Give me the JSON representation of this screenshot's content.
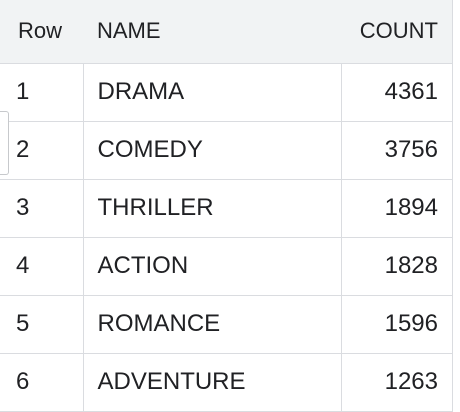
{
  "table": {
    "columns": [
      "Row",
      "NAME",
      "COUNT"
    ],
    "rows": [
      {
        "row": "1",
        "name": "DRAMA",
        "count": "4361"
      },
      {
        "row": "2",
        "name": "COMEDY",
        "count": "3756"
      },
      {
        "row": "3",
        "name": "THRILLER",
        "count": "1894"
      },
      {
        "row": "4",
        "name": "ACTION",
        "count": "1828"
      },
      {
        "row": "5",
        "name": "ROMANCE",
        "count": "1596"
      },
      {
        "row": "6",
        "name": "ADVENTURE",
        "count": "1263"
      }
    ]
  },
  "colors": {
    "header_bg": "#f1f3f4",
    "grid_line": "#dadce0",
    "text": "#202124"
  }
}
